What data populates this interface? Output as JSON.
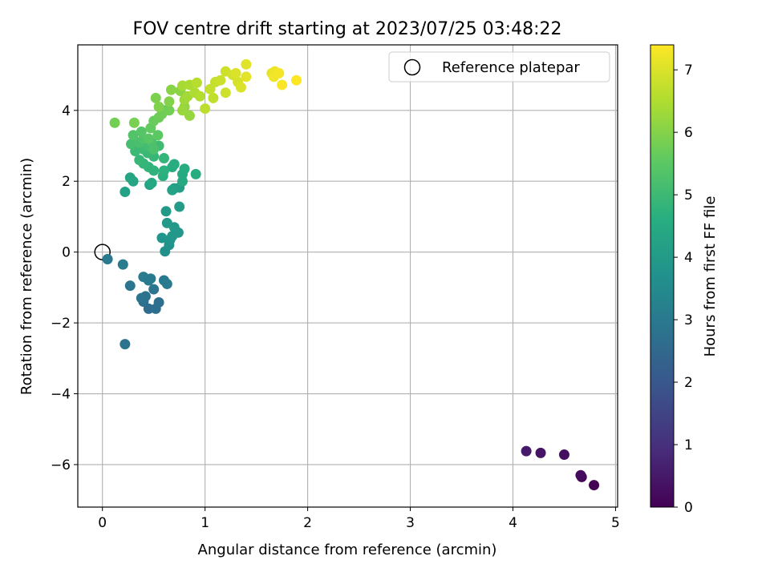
{
  "chart_data": {
    "type": "scatter",
    "title": "FOV centre drift starting at 2023/07/25 03:48:22",
    "xlabel": "Angular distance from reference (arcmin)",
    "ylabel": "Rotation from reference (arcmin)",
    "xlim": [
      -0.24,
      5.02
    ],
    "ylim": [
      -7.2,
      5.85
    ],
    "xticks": [
      0,
      1,
      2,
      3,
      4,
      5
    ],
    "yticks": [
      -6,
      -4,
      -2,
      0,
      2,
      4
    ],
    "grid": true,
    "legend": {
      "placement": "top-right",
      "entries": [
        "Reference platepar"
      ]
    },
    "reference_point": {
      "x": 0,
      "y": 0
    },
    "colormap": "viridis",
    "colorbar": {
      "label": "Hours from first FF file",
      "range": [
        0,
        7.4
      ],
      "ticks": [
        0,
        1,
        2,
        3,
        4,
        5,
        6,
        7
      ]
    },
    "points": [
      [
        4.79,
        -6.58,
        0.0
      ],
      [
        4.67,
        -6.35,
        0.1
      ],
      [
        4.66,
        -6.3,
        0.2
      ],
      [
        4.5,
        -5.72,
        0.3
      ],
      [
        4.27,
        -5.67,
        0.4
      ],
      [
        4.13,
        -5.62,
        0.5
      ],
      [
        0.22,
        -2.6,
        2.8
      ],
      [
        0.05,
        -0.2,
        3.0
      ],
      [
        0.2,
        -0.35,
        3.05
      ],
      [
        0.27,
        -0.95,
        2.85
      ],
      [
        0.4,
        -1.4,
        2.7
      ],
      [
        0.42,
        -1.25,
        2.75
      ],
      [
        0.45,
        -1.6,
        2.6
      ],
      [
        0.52,
        -1.6,
        2.65
      ],
      [
        0.55,
        -1.42,
        2.7
      ],
      [
        0.38,
        -1.3,
        2.8
      ],
      [
        0.5,
        -1.05,
        2.9
      ],
      [
        0.4,
        -0.7,
        3.05
      ],
      [
        0.47,
        -0.75,
        3.1
      ],
      [
        0.45,
        -0.8,
        3.0
      ],
      [
        0.6,
        -0.8,
        3.0
      ],
      [
        0.63,
        -0.9,
        3.05
      ],
      [
        0.61,
        0.02,
        3.7
      ],
      [
        0.65,
        0.2,
        3.75
      ],
      [
        0.66,
        0.35,
        3.8
      ],
      [
        0.58,
        0.4,
        3.85
      ],
      [
        0.68,
        0.45,
        3.9
      ],
      [
        0.74,
        0.55,
        3.9
      ],
      [
        0.7,
        0.7,
        3.95
      ],
      [
        0.63,
        0.82,
        3.95
      ],
      [
        0.62,
        1.15,
        4.0
      ],
      [
        0.75,
        1.28,
        4.05
      ],
      [
        0.7,
        1.8,
        4.1
      ],
      [
        0.75,
        1.82,
        4.15
      ],
      [
        0.68,
        1.75,
        4.2
      ],
      [
        0.46,
        1.9,
        4.25
      ],
      [
        0.22,
        1.7,
        4.25
      ],
      [
        0.27,
        2.1,
        4.3
      ],
      [
        0.3,
        2.0,
        4.35
      ],
      [
        0.48,
        1.95,
        4.4
      ],
      [
        0.78,
        2.0,
        4.45
      ],
      [
        0.78,
        2.2,
        4.5
      ],
      [
        0.8,
        2.35,
        4.55
      ],
      [
        0.68,
        2.4,
        4.55
      ],
      [
        0.7,
        2.48,
        4.6
      ],
      [
        0.91,
        2.2,
        4.6
      ],
      [
        0.59,
        2.15,
        4.65
      ],
      [
        0.6,
        2.3,
        4.7
      ],
      [
        0.5,
        2.3,
        4.75
      ],
      [
        0.45,
        2.4,
        4.8
      ],
      [
        0.6,
        2.65,
        4.85
      ],
      [
        0.4,
        2.5,
        4.85
      ],
      [
        0.36,
        2.6,
        4.9
      ],
      [
        0.5,
        2.7,
        4.9
      ],
      [
        0.44,
        2.8,
        4.95
      ],
      [
        0.4,
        2.9,
        5.0
      ],
      [
        0.32,
        2.85,
        5.0
      ],
      [
        0.55,
        3.0,
        5.05
      ],
      [
        0.44,
        3.0,
        5.1
      ],
      [
        0.28,
        3.05,
        5.15
      ],
      [
        0.36,
        3.1,
        5.2
      ],
      [
        0.48,
        3.1,
        5.25
      ],
      [
        0.5,
        2.9,
        5.25
      ],
      [
        0.4,
        3.2,
        5.3
      ],
      [
        0.3,
        3.3,
        5.35
      ],
      [
        0.38,
        3.4,
        5.4
      ],
      [
        0.45,
        3.2,
        5.45
      ],
      [
        0.54,
        3.3,
        5.5
      ],
      [
        0.6,
        4.0,
        5.55
      ],
      [
        0.47,
        3.5,
        5.6
      ],
      [
        0.5,
        3.7,
        5.65
      ],
      [
        0.55,
        3.8,
        5.7
      ],
      [
        0.58,
        3.9,
        5.75
      ],
      [
        0.65,
        4.0,
        5.8
      ],
      [
        0.12,
        3.65,
        5.8
      ],
      [
        0.31,
        3.65,
        5.85
      ],
      [
        0.52,
        4.35,
        5.9
      ],
      [
        0.55,
        4.1,
        5.95
      ],
      [
        0.65,
        4.25,
        6.0
      ],
      [
        0.67,
        4.58,
        6.05
      ],
      [
        0.76,
        4.55,
        6.1
      ],
      [
        0.8,
        4.1,
        6.15
      ],
      [
        0.85,
        3.85,
        6.2
      ],
      [
        0.78,
        4.0,
        6.25
      ],
      [
        0.8,
        4.3,
        6.3
      ],
      [
        0.83,
        4.4,
        6.35
      ],
      [
        0.78,
        4.7,
        6.4
      ],
      [
        0.85,
        4.72,
        6.45
      ],
      [
        0.9,
        4.5,
        6.5
      ],
      [
        0.95,
        4.4,
        6.55
      ],
      [
        0.92,
        4.78,
        6.6
      ],
      [
        1.0,
        4.05,
        6.65
      ],
      [
        1.08,
        4.35,
        6.7
      ],
      [
        1.05,
        4.6,
        6.75
      ],
      [
        1.1,
        4.8,
        6.75
      ],
      [
        1.15,
        4.85,
        6.8
      ],
      [
        1.2,
        5.1,
        6.85
      ],
      [
        1.2,
        4.5,
        6.85
      ],
      [
        1.27,
        5.0,
        6.9
      ],
      [
        1.32,
        4.8,
        6.95
      ],
      [
        1.35,
        4.65,
        7.0
      ],
      [
        1.3,
        5.05,
        7.0
      ],
      [
        1.4,
        5.3,
        7.05
      ],
      [
        1.4,
        4.95,
        7.1
      ],
      [
        1.65,
        5.05,
        7.15
      ],
      [
        1.68,
        5.1,
        7.2
      ],
      [
        1.67,
        4.95,
        7.25
      ],
      [
        1.72,
        5.05,
        7.3
      ],
      [
        1.75,
        4.72,
        7.35
      ],
      [
        1.89,
        4.85,
        7.4
      ]
    ]
  }
}
